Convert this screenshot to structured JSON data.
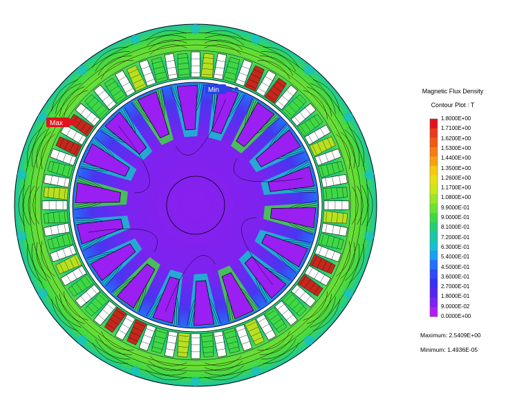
{
  "legend": {
    "title": "Magnetic Flux Density",
    "subtitle": "Contour Plot : T",
    "levels": [
      "1.8000E+00",
      "1.7100E+00",
      "1.6200E+00",
      "1.5300E+00",
      "1.4400E+00",
      "1.3500E+00",
      "1.2600E+00",
      "1.1700E+00",
      "1.0800E+00",
      "9.9000E-01",
      "9.0000E-01",
      "8.1000E-01",
      "7.2000E-01",
      "6.3000E-01",
      "5.4000E-01",
      "4.5000E-01",
      "3.6000E-01",
      "2.7000E-01",
      "1.8000E-01",
      "9.0000E-02",
      "0.0000E+00"
    ],
    "colors": [
      "#e0141e",
      "#ea3a1a",
      "#f05a14",
      "#f57d12",
      "#f9a010",
      "#f7c812",
      "#e8e015",
      "#c8e81a",
      "#9be625",
      "#6ee032",
      "#3fd845",
      "#25cc78",
      "#1ac7a8",
      "#17bfd0",
      "#1b9ff0",
      "#2471f7",
      "#2f4af7",
      "#3a2ff2",
      "#5625f0",
      "#7d22ef",
      "#b21ef0"
    ]
  },
  "stats": {
    "maximum": "Maximum: 2.5409E+00",
    "minimum": "Minimum: 1.4936E-05"
  },
  "markers": {
    "max_label": "Max",
    "min_label": "Min",
    "max_color": "#e0141e",
    "min_color": "#2a40e8"
  },
  "colors": {
    "stator_mid": "#3fd845",
    "stator_high": "#b8e020",
    "stator_low": "#17bfd0",
    "tooth_high": "#c4281c",
    "rotor_core": "#7d22ef",
    "rotor_low": "#2f4af7",
    "rotor_bar": "#9b1ef2"
  }
}
